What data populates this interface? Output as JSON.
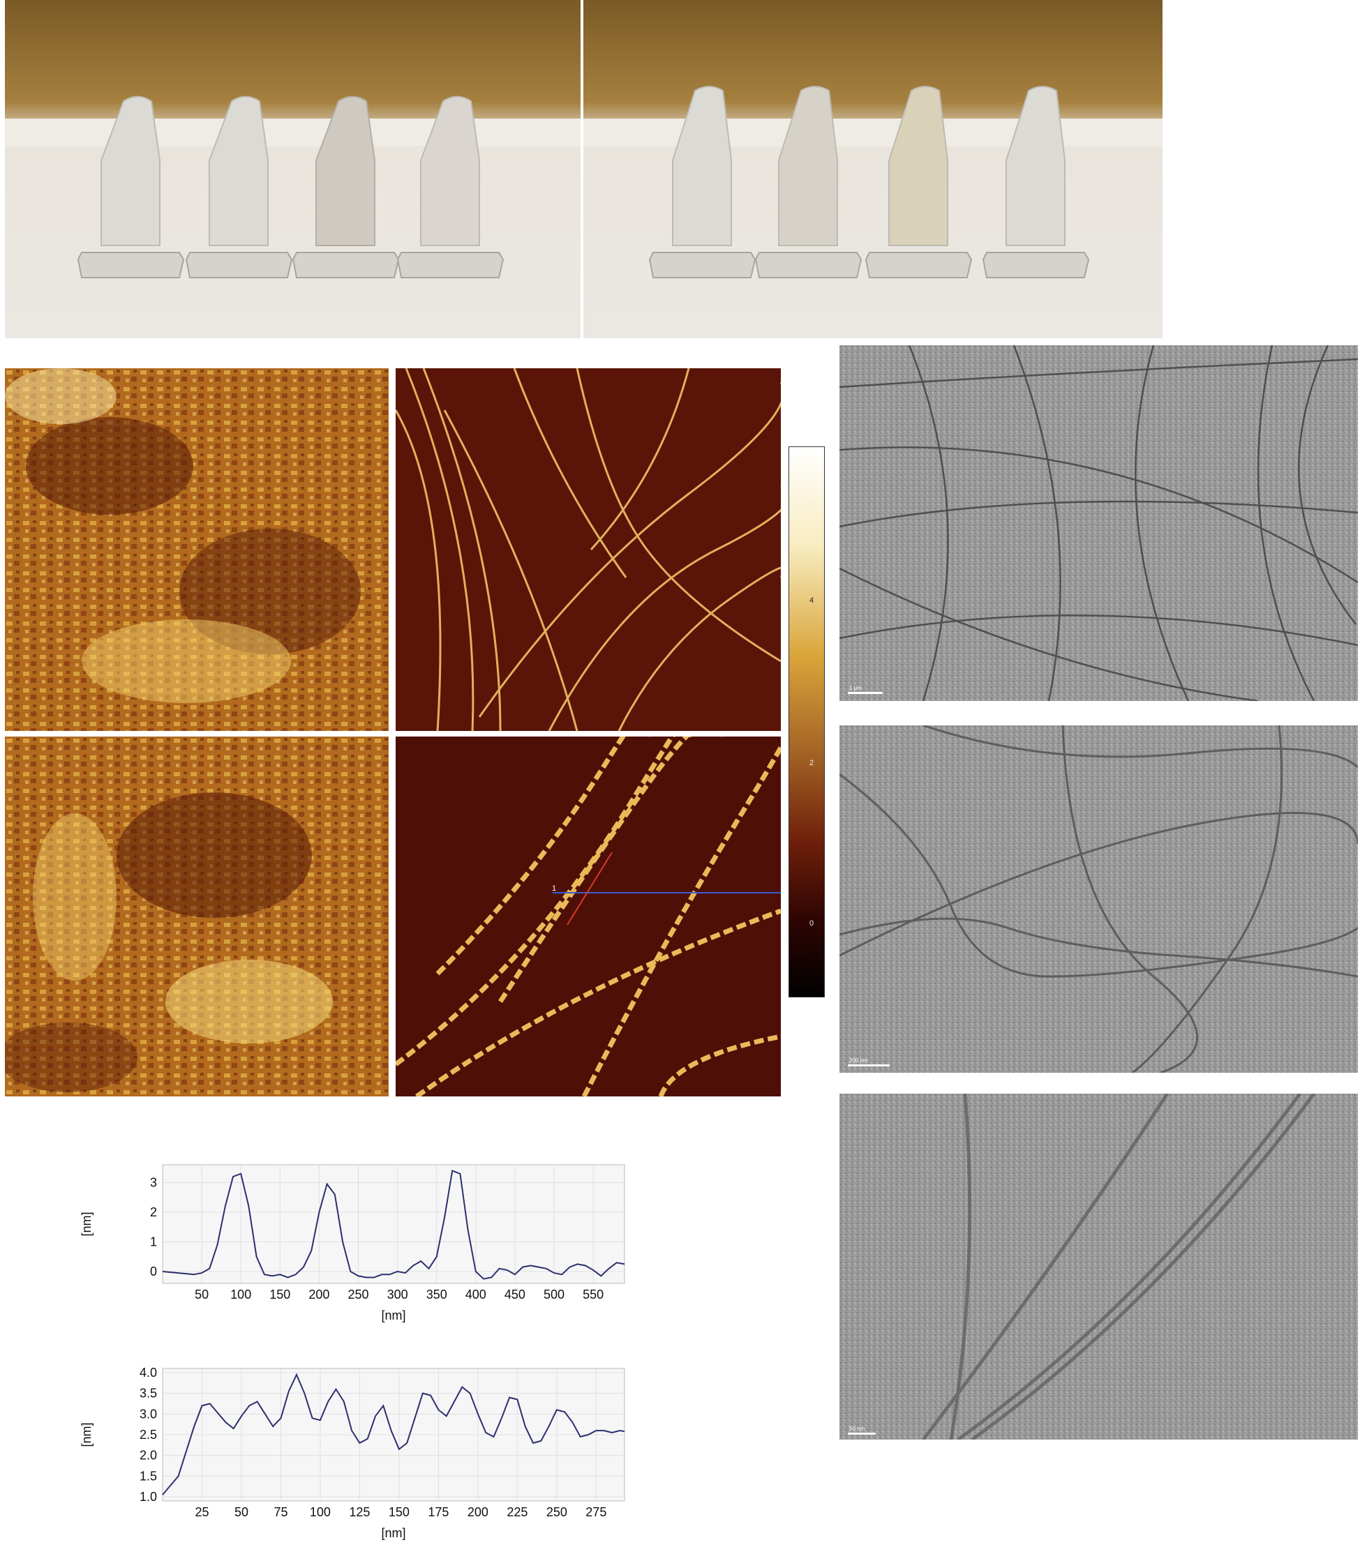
{
  "colorbar": {
    "ticks": [
      "4",
      "2",
      "0"
    ]
  },
  "afm_line_labels": {
    "line1": "1"
  },
  "tem_scale_bars": [
    "1 μm",
    "200 nm",
    "50 nm"
  ],
  "chart_data": [
    {
      "type": "line",
      "title": "",
      "xlabel": "[nm]",
      "ylabel": "[nm]",
      "xlim": [
        0,
        590
      ],
      "ylim": [
        -0.4,
        3.6
      ],
      "xticks": [
        50,
        100,
        150,
        200,
        250,
        300,
        350,
        400,
        450,
        500,
        550
      ],
      "yticks": [
        0,
        1,
        2,
        3
      ],
      "grid": true,
      "series": [
        {
          "x": [
            0,
            20,
            40,
            50,
            60,
            70,
            80,
            90,
            100,
            110,
            120,
            130,
            140,
            150,
            160,
            170,
            180,
            190,
            200,
            210,
            220,
            230,
            240,
            250,
            260,
            270,
            280,
            290,
            300,
            310,
            320,
            330,
            340,
            350,
            360,
            370,
            380,
            390,
            400,
            410,
            420,
            430,
            440,
            450,
            460,
            470,
            480,
            490,
            500,
            510,
            520,
            530,
            540,
            550,
            560,
            570,
            580,
            590
          ],
          "y": [
            0,
            -0.05,
            -0.1,
            -0.05,
            0.1,
            0.9,
            2.2,
            3.2,
            3.3,
            2.2,
            0.5,
            -0.1,
            -0.15,
            -0.1,
            -0.2,
            -0.1,
            0.15,
            0.7,
            2.0,
            2.95,
            2.6,
            1.0,
            0.0,
            -0.15,
            -0.2,
            -0.2,
            -0.1,
            -0.1,
            0.0,
            -0.05,
            0.2,
            0.35,
            0.1,
            0.5,
            1.8,
            3.4,
            3.3,
            1.4,
            0.0,
            -0.25,
            -0.2,
            0.1,
            0.05,
            -0.1,
            0.15,
            0.2,
            0.15,
            0.1,
            -0.05,
            -0.1,
            0.15,
            0.25,
            0.2,
            0.05,
            -0.15,
            0.1,
            0.3,
            0.25
          ]
        }
      ]
    },
    {
      "type": "line",
      "title": "",
      "xlabel": "[nm]",
      "ylabel": "[nm]",
      "xlim": [
        0,
        293
      ],
      "ylim": [
        0.9,
        4.1
      ],
      "xticks": [
        25,
        50,
        75,
        100,
        125,
        150,
        175,
        200,
        225,
        250,
        275
      ],
      "yticks": [
        1.0,
        1.5,
        2.0,
        2.5,
        3.0,
        3.5,
        4.0
      ],
      "grid": true,
      "series": [
        {
          "x": [
            0,
            10,
            20,
            25,
            30,
            40,
            45,
            50,
            55,
            60,
            65,
            70,
            75,
            80,
            85,
            90,
            95,
            100,
            105,
            110,
            115,
            120,
            125,
            130,
            135,
            140,
            145,
            150,
            155,
            160,
            165,
            170,
            175,
            180,
            185,
            190,
            195,
            200,
            205,
            210,
            215,
            220,
            225,
            230,
            235,
            240,
            245,
            250,
            255,
            260,
            265,
            270,
            275,
            280,
            285,
            290,
            293
          ],
          "y": [
            1.05,
            1.5,
            2.7,
            3.2,
            3.25,
            2.8,
            2.65,
            2.95,
            3.2,
            3.3,
            3.0,
            2.7,
            2.9,
            3.55,
            3.95,
            3.5,
            2.9,
            2.85,
            3.3,
            3.6,
            3.3,
            2.6,
            2.3,
            2.4,
            2.95,
            3.2,
            2.6,
            2.15,
            2.3,
            2.9,
            3.5,
            3.45,
            3.1,
            2.95,
            3.3,
            3.65,
            3.5,
            3.0,
            2.55,
            2.45,
            2.9,
            3.4,
            3.35,
            2.7,
            2.3,
            2.35,
            2.7,
            3.1,
            3.05,
            2.8,
            2.45,
            2.5,
            2.6,
            2.6,
            2.55,
            2.6,
            2.58
          ]
        }
      ]
    }
  ]
}
